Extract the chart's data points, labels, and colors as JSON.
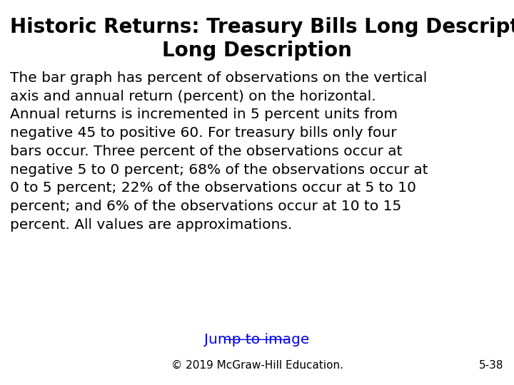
{
  "title_line1": "Historic Returns: Treasury Bills Long Description",
  "title_line2": "Long Description",
  "body_text": "The bar graph has percent of observations on the vertical\naxis and annual return (percent) on the horizontal.\nAnnual returns is incremented in 5 percent units from\nnegative 45 to positive 60. For treasury bills only four\nbars occur. Three percent of the observations occur at\nnegative 5 to 0 percent; 68% of the observations occur at\n0 to 5 percent; 22% of the observations occur at 5 to 10\npercent; and 6% of the observations occur at 10 to 15\npercent. All values are approximations.",
  "link_text": "Jump to image",
  "footer_text": "© 2019 McGraw-Hill Education.",
  "page_number": "5-38",
  "background_color": "#ffffff",
  "title_fontsize": 20,
  "body_fontsize": 14.5,
  "footer_fontsize": 11,
  "link_color": "#0000EE",
  "text_color": "#000000",
  "footer_color": "#000000"
}
